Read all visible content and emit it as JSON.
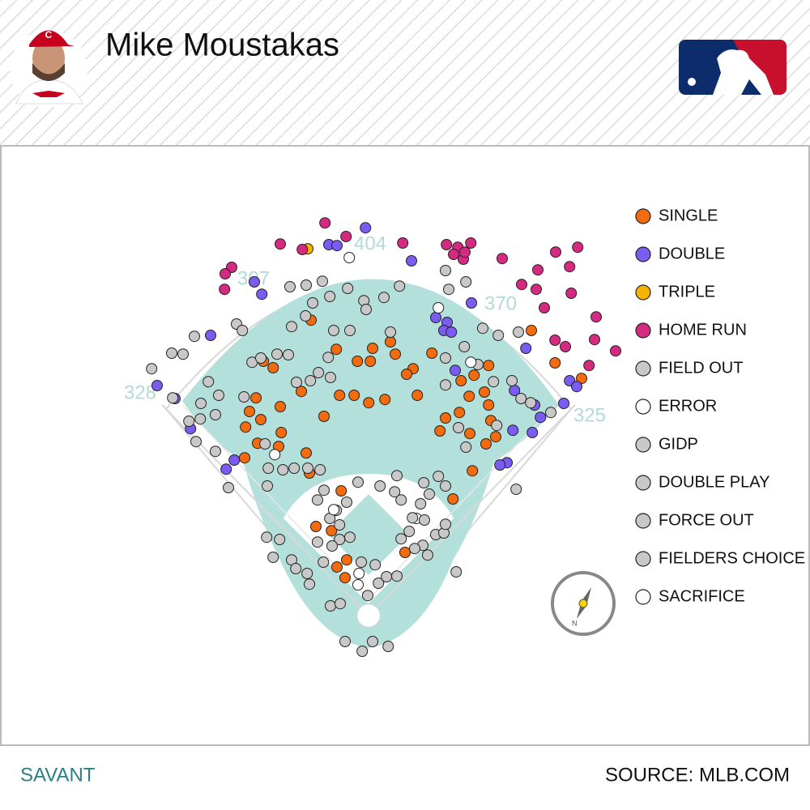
{
  "chart_data": {
    "type": "scatter",
    "title": "Mike Moustakas",
    "xlim": [
      0,
      250
    ],
    "ylim": [
      250,
      0
    ],
    "fence_distances": [
      328,
      307,
      404,
      370,
      325
    ],
    "series": [
      {
        "name": "SINGLE",
        "color": "#f26b0f",
        "x": [
          96,
          103.8,
          110.3,
          115,
          114.3,
          122,
          120.5,
          133.3,
          127.5,
          125.5,
          128.8,
          118.8,
          113.8,
          109.3,
          104.8,
          100,
          93,
          86.5,
          84.3,
          81.3,
          79,
          77,
          80.5,
          75.8,
          79.5,
          75.5,
          86.8,
          86,
          94.5,
          95.5,
          105.3,
          97.5,
          102.3,
          104,
          107,
          106.5,
          125,
          139.8,
          145.8,
          150,
          153,
          151.5,
          150.8,
          144.8,
          141.8,
          137.5,
          135.8,
          145,
          146.3,
          150.8,
          142.3,
          149.5,
          164,
          179.5,
          171.3
        ],
        "y": [
          98.8,
          107.8,
          111.5,
          107.5,
          111.5,
          109.3,
          105.5,
          109,
          113.8,
          115.5,
          122,
          123.3,
          124.3,
          122,
          122,
          128.5,
          120.8,
          125.5,
          113.5,
          111.5,
          122.8,
          127,
          129.5,
          131.8,
          136.8,
          141.3,
          133.5,
          137.8,
          139.8,
          146,
          151.5,
          162.5,
          163.8,
          175,
          172.8,
          178.3,
          170.5,
          154,
          145.3,
          137,
          134.8,
          129.8,
          125,
          122.3,
          127.3,
          129,
          133,
          133.8,
          115.8,
          112.8,
          117.5,
          121,
          102,
          116.8,
          112
        ]
      },
      {
        "name": "DOUBLE",
        "color": "#7b5cf0",
        "x": [
          112.8,
          101.5,
          104,
          127,
          78.5,
          80.8,
          145.5,
          134.5,
          138,
          137,
          139.3,
          162.3,
          65,
          48.5,
          54,
          58.8,
          69.8,
          72.3,
          158.8,
          165,
          166.8,
          158.3,
          164.3,
          174,
          175.8,
          178,
          140.5,
          156.5,
          154.3
        ],
        "y": [
          70.3,
          75.5,
          75.8,
          80.5,
          87,
          90.8,
          93.5,
          98,
          99.5,
          102,
          102.5,
          107.5,
          103.5,
          119,
          123,
          132.3,
          144.8,
          142,
          120.5,
          125,
          128.8,
          132.8,
          133.5,
          124.5,
          117.5,
          119.3,
          114.3,
          142.8,
          143.5
        ]
      },
      {
        "name": "TRIPLE",
        "color": "#f5b400",
        "x": [
          95
        ],
        "y": [
          76.8
        ]
      },
      {
        "name": "HOME RUN",
        "color": "#d42a82",
        "x": [
          100.3,
          86.5,
          93.3,
          106.8,
          124.3,
          137.8,
          141.3,
          145.3,
          140,
          143,
          143.5,
          155,
          171.5,
          178.3,
          166,
          175.8,
          161,
          165.5,
          176.3,
          168,
          184,
          171.3,
          174.5,
          183.5,
          190,
          181.8,
          71.5,
          69.5,
          69.3
        ],
        "y": [
          68.8,
          75.3,
          77,
          73,
          75,
          75.5,
          76.3,
          75,
          78.5,
          80,
          77.8,
          79.8,
          77.8,
          76.3,
          83.3,
          82.3,
          87.8,
          89.3,
          90.5,
          95,
          97.8,
          105,
          107,
          104.8,
          108.3,
          112.8,
          82.5,
          84.5,
          89.3
        ]
      },
      {
        "name": "FIELD OUT",
        "color": "#c8c8c8",
        "x": [
          60,
          53,
          56.5,
          46.8,
          64.3,
          53.3,
          62,
          67.5,
          58.3,
          61.8,
          66.5,
          60.5,
          66.5,
          70.5,
          75.3,
          77.8,
          80.5,
          85.5,
          89,
          91.5,
          95.8,
          98.3,
          102,
          101.3,
          103,
          108,
          101.8,
          107.3,
          112.3,
          118.5,
          113,
          120.5,
          123.3,
          137.5,
          138.5,
          143.8,
          149,
          153.8,
          160,
          152.3,
          158,
          160.8,
          163.8,
          170,
          143.3,
          147.5,
          137.5,
          137.5,
          73,
          74.8,
          90,
          94.3,
          96.5,
          89.5,
          94.5,
          99.5,
          81.8,
          82.8,
          82.5,
          87.3,
          90.8,
          95,
          98.8,
          82.3,
          86.3,
          84.3,
          90,
          91.3,
          94.8,
          95.5,
          99.8,
          106.5,
          111.8,
          115,
          119.8,
          102,
          105,
          113.5,
          116.8,
          119.3,
          122.5,
          111.5,
          115.8,
          130.8,
          132.5,
          135.3,
          129.8,
          134.5,
          123.8,
          117.3,
          122.5,
          110.5,
          107,
          103.8,
          101.8,
          98,
          100,
          108,
          104.8,
          98,
          102.5,
          104.8,
          123.8,
          132,
          137,
          140.8,
          159.3,
          137.5,
          137.5,
          141.5,
          143.8,
          153.3
        ],
        "y": [
          103.8,
          109,
          109.3,
          113.8,
          117.8,
          122.8,
          124.5,
          122,
          130,
          129.3,
          128,
          136.3,
          139.3,
          150.5,
          122.5,
          111.8,
          110.5,
          109.3,
          109.5,
          118,
          117.5,
          115,
          116.5,
          110.3,
          102,
          102,
          91.5,
          89,
          92.8,
          91.8,
          95.5,
          102.5,
          88.3,
          83.5,
          89.3,
          87,
          101.3,
          103.5,
          102.5,
          117.8,
          117.5,
          123,
          124.3,
          127.3,
          107,
          112.5,
          118.8,
          110.5,
          100,
          102,
          100.8,
          97.5,
          93.5,
          88.5,
          88,
          86.8,
          137,
          144.5,
          150,
          145,
          144.5,
          144.5,
          145,
          165.8,
          166.5,
          172,
          172.8,
          175.5,
          177,
          180.3,
          173.5,
          198,
          201,
          198,
          199.5,
          187,
          186.3,
          183.8,
          180,
          178,
          177.8,
          173.5,
          174.3,
          149,
          152.5,
          147,
          155.5,
          165,
          154.3,
          150,
          146.8,
          148.8,
          155,
          157.5,
          160,
          154.3,
          151.3,
          165.8,
          166.5,
          167.3,
          168.5,
          162,
          166.3,
          171.3,
          164.5,
          176.5,
          151,
          161.8,
          150,
          132,
          138,
          131.3
        ]
      },
      {
        "name": "ERROR",
        "color": "#ffffff",
        "x": [
          107.8,
          135.3,
          145.3,
          84.8,
          103,
          110.5,
          128.5
        ],
        "y": [
          79.5,
          95,
          111.8,
          140.3,
          157.3,
          180.5,
          160
        ]
      },
      {
        "name": "GIDP",
        "color": "#c8c8c8",
        "x": [
          130.5,
          128
        ],
        "y": [
          168.3,
          169.3
        ]
      },
      {
        "name": "DOUBLE PLAY",
        "color": "#c8c8c8",
        "x": [
          127.3
        ],
        "y": [
          159.8
        ]
      },
      {
        "name": "FORCE OUT",
        "color": "#c8c8c8",
        "x": [
          126.3,
          131
        ],
        "y": [
          164,
          160.5
        ]
      },
      {
        "name": "FIELDERS CHOICE",
        "color": "#c8c8c8",
        "x": [
          121.8
        ],
        "y": [
          151.8
        ]
      },
      {
        "name": "SACRIFICE",
        "color": "#ffffff",
        "x": [
          110.8
        ],
        "y": [
          177
        ]
      }
    ]
  },
  "footer": {
    "left": "SAVANT",
    "right": "SOURCE: MLB.COM"
  }
}
